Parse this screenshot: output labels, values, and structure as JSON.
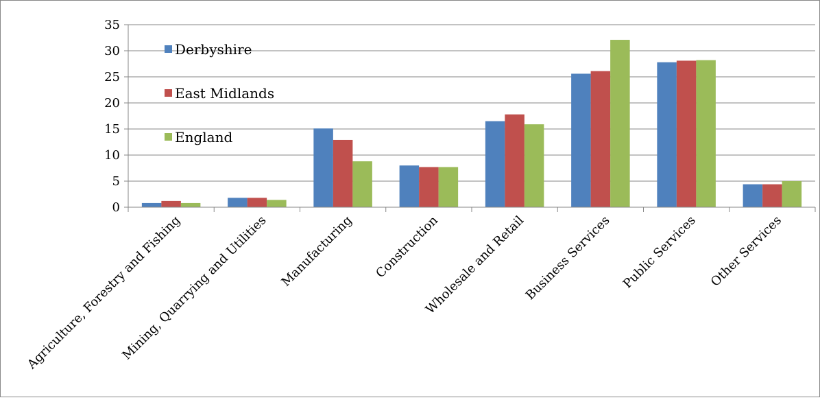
{
  "chart_data": {
    "type": "bar",
    "title": "",
    "xlabel": "",
    "ylabel": "",
    "categories": [
      "Agriculture, Forestry and Fishing",
      "Mining, Quarrying and Utilities",
      "Manufacturing",
      "Construction",
      "Wholesale and Retail",
      "Business Services",
      "Public Services",
      "Other Services"
    ],
    "series": [
      {
        "name": "Derbyshire",
        "color": "#4F81BD",
        "values": [
          0.8,
          1.8,
          15.1,
          8.0,
          16.5,
          25.6,
          27.8,
          4.4
        ]
      },
      {
        "name": "East Midlands",
        "color": "#C0504D",
        "values": [
          1.2,
          1.8,
          12.9,
          7.7,
          17.8,
          26.1,
          28.1,
          4.4
        ]
      },
      {
        "name": "England",
        "color": "#9BBB59",
        "values": [
          0.8,
          1.4,
          8.8,
          7.7,
          15.9,
          32.1,
          28.2,
          5.0
        ]
      }
    ],
    "ylim": [
      0,
      35
    ],
    "yticks": [
      0,
      5,
      10,
      15,
      20,
      25,
      30,
      35
    ],
    "grid": true,
    "legend_position": "top-left"
  }
}
